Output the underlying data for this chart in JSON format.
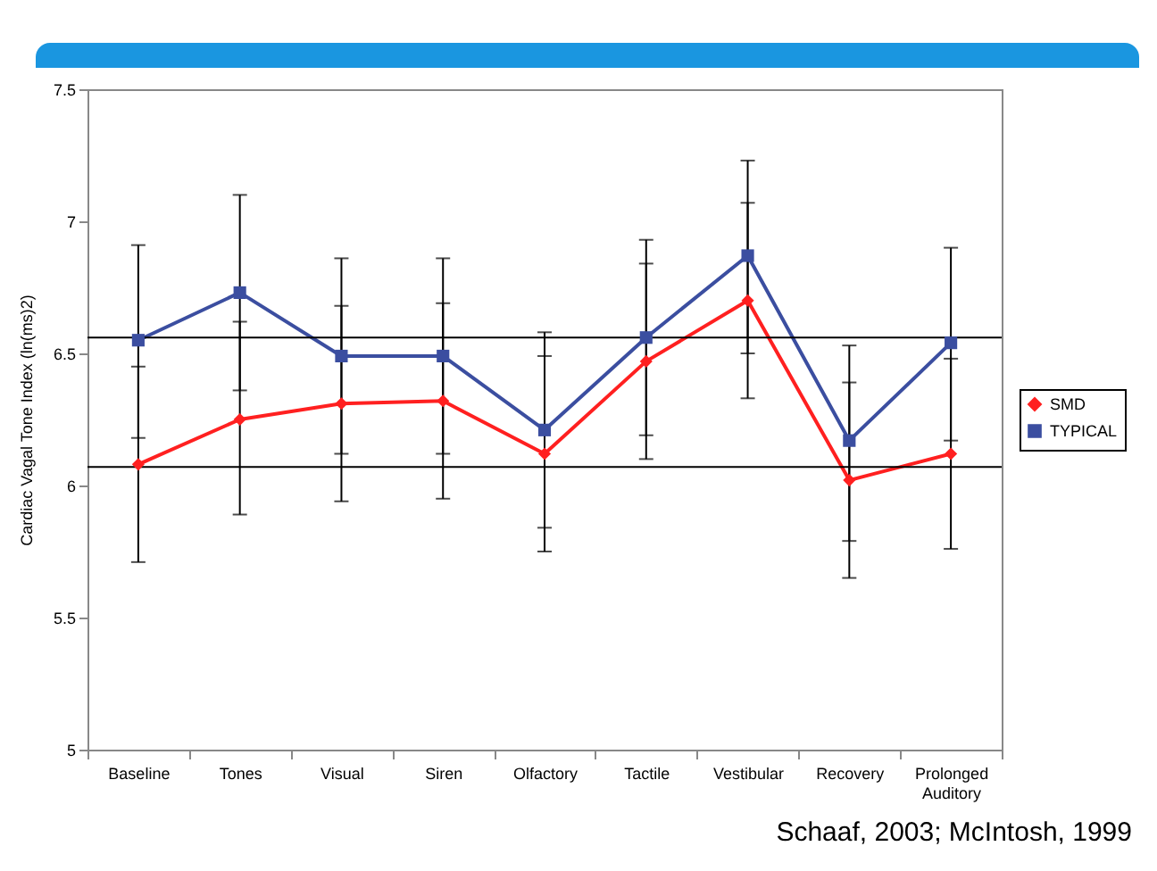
{
  "chart_data": {
    "type": "line",
    "ylabel": "Cardiac Vagal Tone Index (ln(ms)2)",
    "categories": [
      "Baseline",
      "Tones",
      "Visual",
      "Siren",
      "Olfactory",
      "Tactile",
      "Vestibular",
      "Recovery",
      "Prolonged Auditory"
    ],
    "series": [
      {
        "name": "SMD",
        "color": "#ff2020",
        "marker": "diamond",
        "values": [
          6.08,
          6.25,
          6.31,
          6.32,
          6.12,
          6.47,
          6.7,
          6.02,
          6.12
        ],
        "errors": [
          [
            5.71,
            6.45
          ],
          [
            5.89,
            6.62
          ],
          [
            5.94,
            6.68
          ],
          [
            5.95,
            6.69
          ],
          [
            5.75,
            6.49
          ],
          [
            6.1,
            6.84
          ],
          [
            6.33,
            7.07
          ],
          [
            5.65,
            6.39
          ],
          [
            5.76,
            6.48
          ]
        ]
      },
      {
        "name": "TYPICAL",
        "color": "#3b4ea0",
        "marker": "square",
        "values": [
          6.55,
          6.73,
          6.49,
          6.49,
          6.21,
          6.56,
          6.87,
          6.17,
          6.54
        ],
        "errors": [
          [
            6.18,
            6.91
          ],
          [
            6.36,
            7.1
          ],
          [
            6.12,
            6.86
          ],
          [
            6.12,
            6.86
          ],
          [
            5.84,
            6.58
          ],
          [
            6.19,
            6.93
          ],
          [
            6.5,
            7.23
          ],
          [
            5.79,
            6.53
          ],
          [
            6.17,
            6.9
          ]
        ]
      }
    ],
    "ylim": [
      5,
      7.5
    ],
    "yticks": [
      5,
      5.5,
      6,
      6.5,
      7,
      7.5
    ],
    "grid": false,
    "legend": "right",
    "ref_lines": [
      {
        "axis": "y",
        "value": 6.56,
        "color": "#000000"
      },
      {
        "axis": "y",
        "value": 6.07,
        "color": "#000000"
      }
    ],
    "xlabel": null,
    "annotations": [
      "Schaaf, 2003;  McIntosh, 1999"
    ]
  }
}
